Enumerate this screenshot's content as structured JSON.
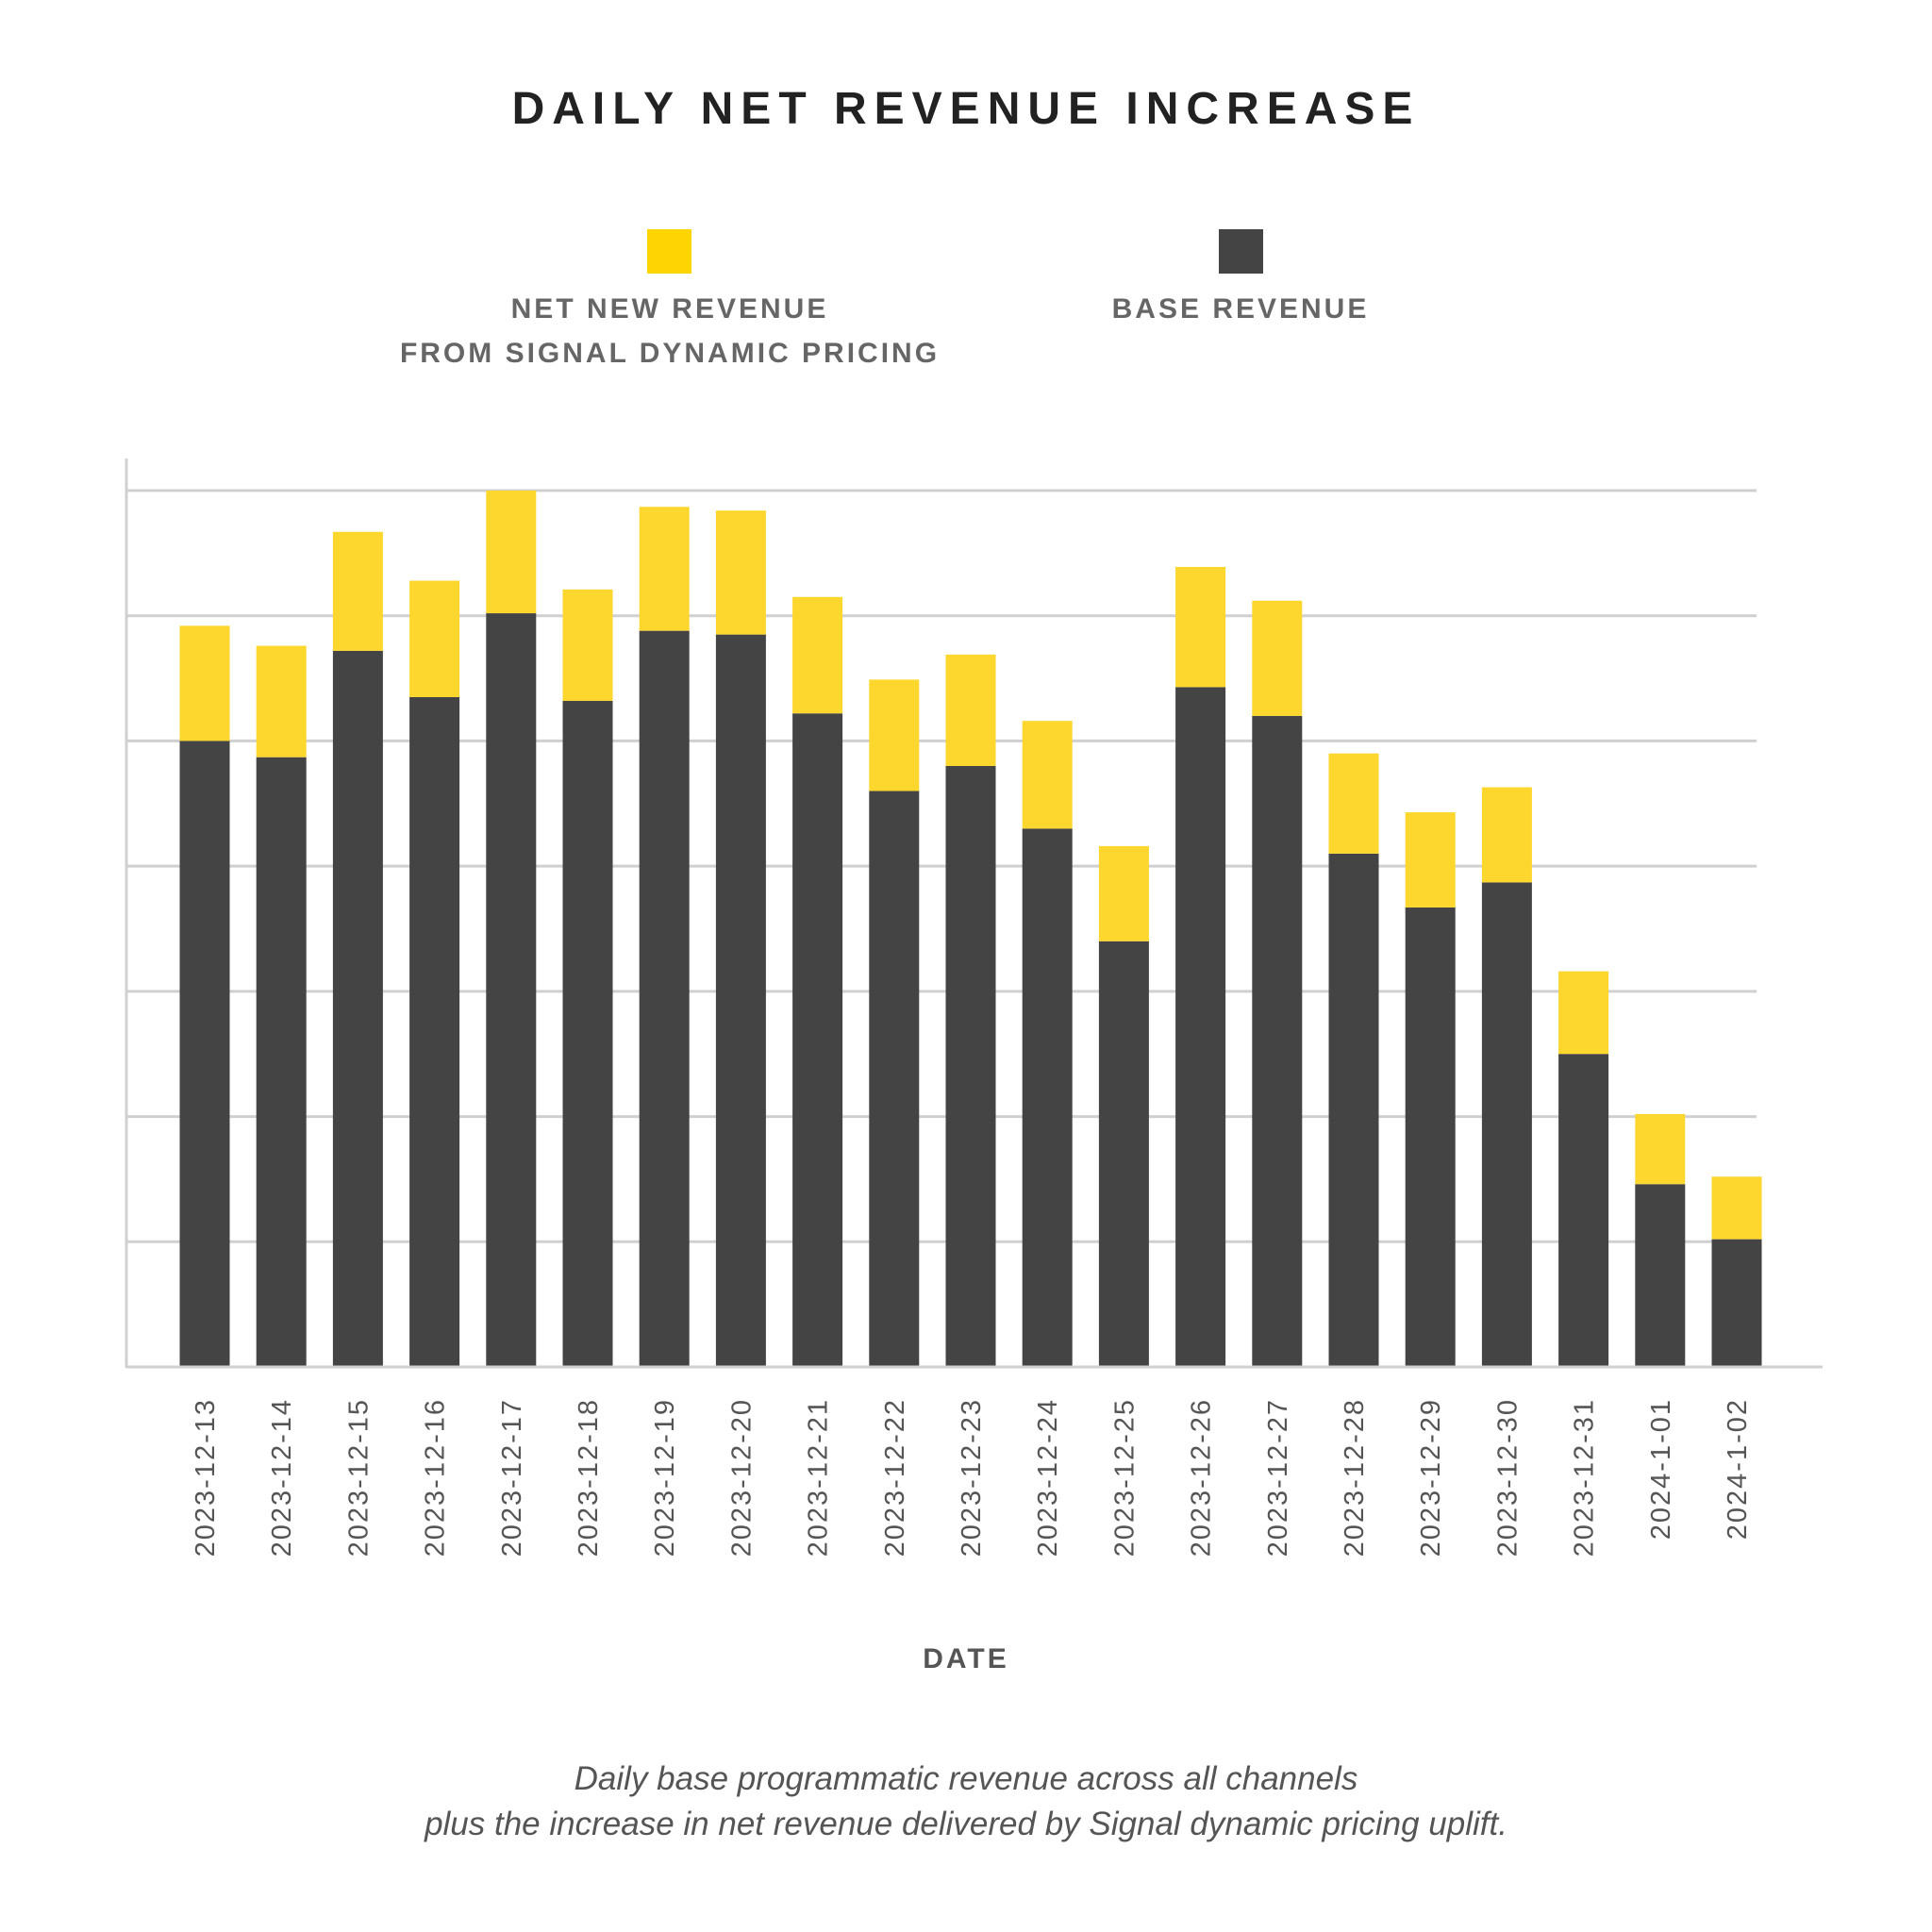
{
  "chart_data": {
    "type": "bar",
    "stacked": true,
    "title": "DAILY NET REVENUE INCREASE",
    "xlabel": "DATE",
    "ylabel": "",
    "ylim": [
      0,
      7
    ],
    "grid": true,
    "legend_position": "top",
    "categories": [
      "2023-12-13",
      "2023-12-14",
      "2023-12-15",
      "2023-12-16",
      "2023-12-17",
      "2023-12-18",
      "2023-12-19",
      "2023-12-20",
      "2023-12-21",
      "2023-12-22",
      "2023-12-23",
      "2023-12-24",
      "2023-12-25",
      "2023-12-26",
      "2023-12-27",
      "2023-12-28",
      "2023-12-29",
      "2023-12-30",
      "2023-12-31",
      "2024-1-01",
      "2024-1-02"
    ],
    "series": [
      {
        "name": "BASE REVENUE",
        "color": "#444444",
        "values": [
          5.0,
          4.87,
          5.72,
          5.35,
          6.02,
          5.32,
          5.88,
          5.85,
          5.22,
          4.6,
          4.8,
          4.3,
          3.4,
          5.43,
          5.2,
          4.1,
          3.67,
          3.87,
          2.5,
          1.46,
          1.02
        ]
      },
      {
        "name": "NET NEW REVENUE FROM SIGNAL DYNAMIC PRICING",
        "color": "#FDD62E",
        "values": [
          0.92,
          0.89,
          0.95,
          0.93,
          0.98,
          0.89,
          0.99,
          0.99,
          0.93,
          0.89,
          0.89,
          0.86,
          0.76,
          0.96,
          0.92,
          0.8,
          0.76,
          0.76,
          0.66,
          0.56,
          0.5
        ]
      }
    ],
    "legend": [
      {
        "lines": [
          "NET NEW REVENUE",
          "FROM SIGNAL DYNAMIC PRICING"
        ],
        "color": "#FFD500"
      },
      {
        "lines": [
          "BASE REVENUE"
        ],
        "color": "#444444"
      }
    ],
    "caption": [
      "Daily base programmatic revenue across all channels",
      "plus the increase in net revenue delivered by Signal dynamic pricing uplift."
    ]
  }
}
